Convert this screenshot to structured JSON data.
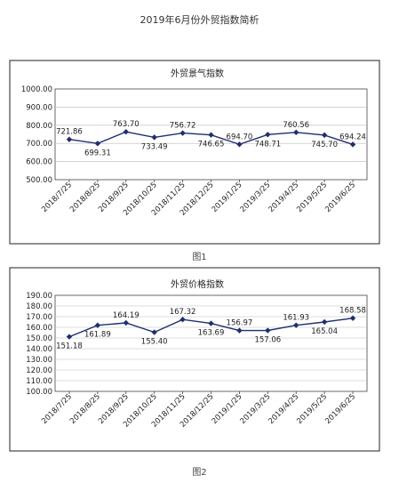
{
  "page": {
    "title": "2019年6月份外贸指数简析",
    "caption_1": "图1",
    "caption_2": "图2"
  },
  "colors": {
    "series": "#1f2f6e",
    "grid": "#bbbbbb"
  },
  "chart_data": [
    {
      "type": "line",
      "title": "外贸景气指数",
      "categories": [
        "2018/7/25",
        "2018/8/25",
        "2018/9/25",
        "2018/10/25",
        "2018/11/25",
        "2018/12/25",
        "2019/1/25",
        "2019/3/25",
        "2019/4/25",
        "2019/5/25",
        "2019/6/25"
      ],
      "values": [
        721.86,
        699.31,
        763.7,
        733.49,
        756.72,
        746.65,
        694.7,
        748.71,
        760.56,
        745.7,
        694.24
      ],
      "value_labels": [
        "721.86",
        "699.31",
        "763.70",
        "733.49",
        "756.72",
        "746.65",
        "694.70",
        "748.71",
        "760.56",
        "745.70",
        "694.24"
      ],
      "label_position": [
        "above",
        "below",
        "above",
        "below",
        "above",
        "below",
        "above",
        "below",
        "above",
        "below",
        "above"
      ],
      "y_ticks": [
        "500.00",
        "600.00",
        "700.00",
        "800.00",
        "900.00",
        "1000.00"
      ],
      "ylim": [
        500,
        1000
      ],
      "grid": true,
      "legend": false
    },
    {
      "type": "line",
      "title": "外贸价格指数",
      "categories": [
        "2018/7/25",
        "2018/8/25",
        "2018/9/25",
        "2018/10/25",
        "2018/11/25",
        "2018/12/25",
        "2019/1/25",
        "2019/3/25",
        "2019/4/25",
        "2019/5/25",
        "2019/6/25"
      ],
      "values": [
        151.18,
        161.89,
        164.19,
        155.4,
        167.32,
        163.69,
        156.97,
        157.06,
        161.93,
        165.04,
        168.58
      ],
      "value_labels": [
        "151.18",
        "161.89",
        "164.19",
        "155.40",
        "167.32",
        "163.69",
        "156.97",
        "157.06",
        "161.93",
        "165.04",
        "168.58"
      ],
      "label_position": [
        "below",
        "below",
        "above",
        "below",
        "above",
        "below",
        "above",
        "below",
        "above",
        "below",
        "above"
      ],
      "y_ticks": [
        "100.00",
        "110.00",
        "120.00",
        "130.00",
        "140.00",
        "150.00",
        "160.00",
        "170.00",
        "180.00",
        "190.00"
      ],
      "ylim": [
        100,
        190
      ],
      "grid": true,
      "legend": false
    }
  ]
}
